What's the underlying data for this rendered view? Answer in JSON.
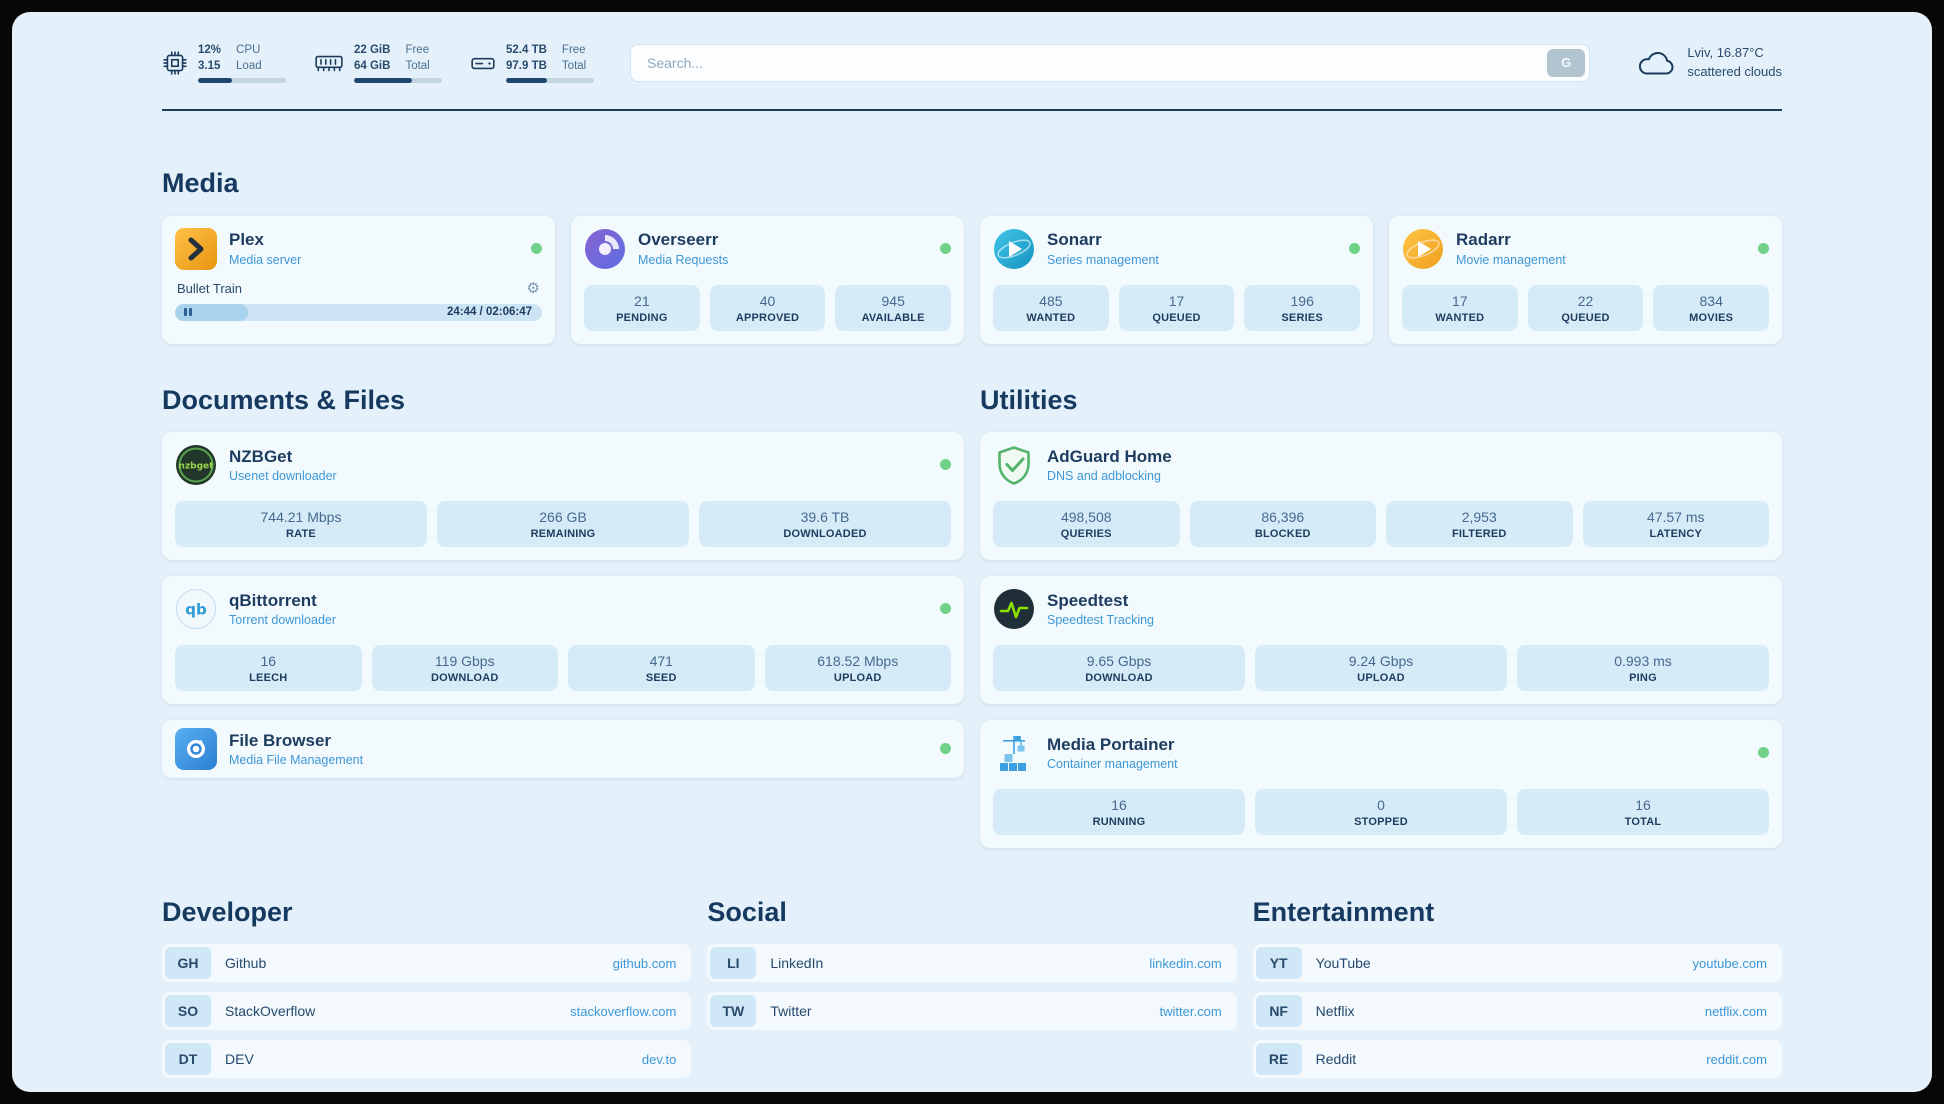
{
  "topbar": {
    "cpu": {
      "value1": "12%",
      "value2": "3.15",
      "label1": "CPU",
      "label2": "Load",
      "percent": 39
    },
    "ram": {
      "value1": "22 GiB",
      "value2": "64 GiB",
      "label1": "Free",
      "label2": "Total",
      "percent": 66
    },
    "disk": {
      "value1": "52.4 TB",
      "value2": "97.9 TB",
      "label1": "Free",
      "label2": "Total",
      "percent": 47
    },
    "search": {
      "placeholder": "Search...",
      "engine_button": "G"
    },
    "weather": {
      "location": "Lviv, 16.87°C",
      "condition": "scattered clouds"
    }
  },
  "media": {
    "title": "Media",
    "plex": {
      "name": "Plex",
      "subtitle": "Media server",
      "now_playing": "Bullet Train",
      "time": "24:44 / 02:06:47",
      "progress_percent": 20
    },
    "overseerr": {
      "name": "Overseerr",
      "subtitle": "Media Requests",
      "stats": [
        {
          "value": "21",
          "label": "PENDING"
        },
        {
          "value": "40",
          "label": "APPROVED"
        },
        {
          "value": "945",
          "label": "AVAILABLE"
        }
      ]
    },
    "sonarr": {
      "name": "Sonarr",
      "subtitle": "Series management",
      "stats": [
        {
          "value": "485",
          "label": "WANTED"
        },
        {
          "value": "17",
          "label": "QUEUED"
        },
        {
          "value": "196",
          "label": "SERIES"
        }
      ]
    },
    "radarr": {
      "name": "Radarr",
      "subtitle": "Movie management",
      "stats": [
        {
          "value": "17",
          "label": "WANTED"
        },
        {
          "value": "22",
          "label": "QUEUED"
        },
        {
          "value": "834",
          "label": "MOVIES"
        }
      ]
    }
  },
  "documents": {
    "title": "Documents & Files",
    "nzbget": {
      "name": "NZBGet",
      "subtitle": "Usenet downloader",
      "stats": [
        {
          "value": "744.21 Mbps",
          "label": "RATE"
        },
        {
          "value": "266 GB",
          "label": "REMAINING"
        },
        {
          "value": "39.6 TB",
          "label": "DOWNLOADED"
        }
      ]
    },
    "qbittorrent": {
      "name": "qBittorrent",
      "subtitle": "Torrent downloader",
      "stats": [
        {
          "value": "16",
          "label": "LEECH"
        },
        {
          "value": "119 Gbps",
          "label": "DOWNLOAD"
        },
        {
          "value": "471",
          "label": "SEED"
        },
        {
          "value": "618.52 Mbps",
          "label": "UPLOAD"
        }
      ]
    },
    "filebrowser": {
      "name": "File Browser",
      "subtitle": "Media File Management"
    }
  },
  "utilities": {
    "title": "Utilities",
    "adguard": {
      "name": "AdGuard Home",
      "subtitle": "DNS and adblocking",
      "stats": [
        {
          "value": "498,508",
          "label": "QUERIES"
        },
        {
          "value": "86,396",
          "label": "BLOCKED"
        },
        {
          "value": "2,953",
          "label": "FILTERED"
        },
        {
          "value": "47.57 ms",
          "label": "LATENCY"
        }
      ]
    },
    "speedtest": {
      "name": "Speedtest",
      "subtitle": "Speedtest Tracking",
      "stats": [
        {
          "value": "9.65 Gbps",
          "label": "DOWNLOAD"
        },
        {
          "value": "9.24 Gbps",
          "label": "UPLOAD"
        },
        {
          "value": "0.993 ms",
          "label": "PING"
        }
      ]
    },
    "portainer": {
      "name": "Media Portainer",
      "subtitle": "Container management",
      "stats": [
        {
          "value": "16",
          "label": "RUNNING"
        },
        {
          "value": "0",
          "label": "STOPPED"
        },
        {
          "value": "16",
          "label": "TOTAL"
        }
      ]
    }
  },
  "bookmarks": {
    "developer": {
      "title": "Developer",
      "items": [
        {
          "abbr": "GH",
          "name": "Github",
          "url": "github.com"
        },
        {
          "abbr": "SO",
          "name": "StackOverflow",
          "url": "stackoverflow.com"
        },
        {
          "abbr": "DT",
          "name": "DEV",
          "url": "dev.to"
        }
      ]
    },
    "social": {
      "title": "Social",
      "items": [
        {
          "abbr": "LI",
          "name": "LinkedIn",
          "url": "linkedin.com"
        },
        {
          "abbr": "TW",
          "name": "Twitter",
          "url": "twitter.com"
        }
      ]
    },
    "entertainment": {
      "title": "Entertainment",
      "items": [
        {
          "abbr": "YT",
          "name": "YouTube",
          "url": "youtube.com"
        },
        {
          "abbr": "NF",
          "name": "Netflix",
          "url": "netflix.com"
        },
        {
          "abbr": "RE",
          "name": "Reddit",
          "url": "reddit.com"
        }
      ]
    }
  },
  "colors": {
    "accent": "#3d97d6",
    "status_online": "#6fd288",
    "navy": "#1c3c5e",
    "page_bg": "#e4f1fa",
    "stat_box": "#d6ebf8"
  }
}
